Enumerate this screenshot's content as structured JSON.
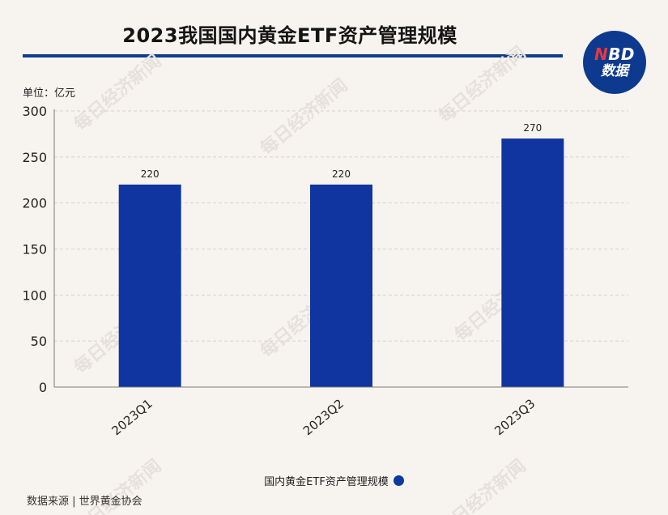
{
  "header": {
    "title": "2023我国国内黄金ETF资产管理规模"
  },
  "logo": {
    "line1_n": "N",
    "line1_rest": "BD",
    "line2": "数据"
  },
  "unit_label": "单位：亿元",
  "source": "数据来源 | 世界黄金协会",
  "watermark": "每日经济新闻",
  "colors": {
    "bar": "#1035a0",
    "title_rule": "#0e3d8c",
    "grid": "#d6d2cc",
    "background": "#f7f4f0"
  },
  "chart_data": {
    "type": "bar",
    "title": "2023我国国内黄金ETF资产管理规模",
    "categories": [
      "2023Q1",
      "2023Q2",
      "2023Q3"
    ],
    "series": [
      {
        "name": "国内黄金ETF资产管理规模",
        "values": [
          220,
          220,
          270
        ]
      }
    ],
    "data_labels": [
      "220",
      "220",
      "270"
    ],
    "ylim": [
      0,
      300
    ],
    "yticks": [
      0,
      50,
      100,
      150,
      200,
      250,
      300
    ],
    "ytick_labels": [
      "0",
      "50",
      "100",
      "150",
      "200",
      "250",
      "300"
    ],
    "grid": true,
    "legend": "bottom-center"
  }
}
